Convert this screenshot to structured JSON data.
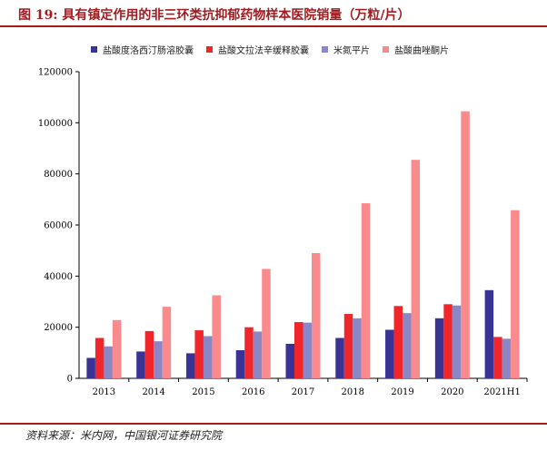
{
  "title": "图 19:  具有镇定作用的非三环类抗抑郁药物样本医院销量（万粒/片）",
  "source": "资料来源：米内网，中国银河证券研究院",
  "chart_data": {
    "type": "bar",
    "title": "具有镇定作用的非三环类抗抑郁药物样本医院销量（万粒/片）",
    "xlabel": "",
    "ylabel": "",
    "ylim": [
      0,
      120000
    ],
    "yticks": [
      "0",
      "20000",
      "40000",
      "60000",
      "80000",
      "100000",
      "120000"
    ],
    "ytick_values": [
      0,
      20000,
      40000,
      60000,
      80000,
      100000,
      120000
    ],
    "grid": false,
    "legend_position": "top",
    "categories": [
      "2013",
      "2014",
      "2015",
      "2016",
      "2017",
      "2018",
      "2019",
      "2020",
      "2021H1"
    ],
    "series": [
      {
        "name": "盐酸度洛西汀肠溶胶囊",
        "color": "#3a3396",
        "values": [
          8000,
          10500,
          9800,
          11000,
          13500,
          15800,
          19000,
          23500,
          34500
        ]
      },
      {
        "name": "盐酸文拉法辛缓释胶囊",
        "color": "#f0262b",
        "values": [
          15800,
          18500,
          18800,
          20000,
          22000,
          25200,
          28300,
          29000,
          16200
        ]
      },
      {
        "name": "米氮平片",
        "color": "#8b86c6",
        "values": [
          12500,
          14500,
          16500,
          18300,
          21800,
          23500,
          25500,
          28500,
          15500
        ]
      },
      {
        "name": "盐酸曲唑酮片",
        "color": "#fb8a8c",
        "values": [
          22800,
          28000,
          32500,
          42800,
          49000,
          68500,
          85500,
          104500,
          65800
        ]
      }
    ]
  }
}
